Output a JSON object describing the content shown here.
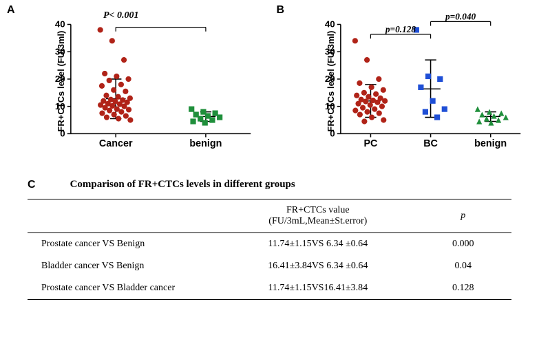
{
  "panelA": {
    "label": "A",
    "y_label": "FR+CTCs level (FU/3ml)",
    "p_text": "P< 0.001",
    "ylim": [
      0,
      40
    ],
    "ytick_step": 10,
    "categories": [
      "Cancer",
      "benign"
    ],
    "series": [
      {
        "name": "Cancer",
        "marker": "circle",
        "color": "#b02318",
        "values": [
          38,
          34,
          27,
          22,
          21,
          20,
          19.5,
          18,
          17.5,
          16,
          15.5,
          14,
          13.5,
          13,
          12.5,
          12.3,
          12,
          11.8,
          11.5,
          11,
          10.8,
          10.5,
          10.2,
          10,
          9.5,
          9,
          8.8,
          8.5,
          8,
          7.5,
          7,
          6.5,
          6,
          5.5,
          5
        ],
        "mean": 12.8,
        "err_top": 20,
        "err_bot": 5.5
      },
      {
        "name": "benign",
        "marker": "square",
        "color": "#1f8f3b",
        "values": [
          9,
          8,
          7.5,
          7,
          6.5,
          6,
          5.5,
          5,
          4.5,
          4
        ],
        "mean": 6.3,
        "err_top": 8,
        "err_bot": 4.5
      }
    ],
    "axis_color": "#000000",
    "marker_size": 6,
    "tick_fontsize": 13,
    "label_fontsize": 14
  },
  "panelB": {
    "label": "B",
    "y_label": "FR+CTCs level (FU/3ml)",
    "p_texts": [
      {
        "text": "p=0.128",
        "between": [
          0,
          1
        ]
      },
      {
        "text": "p=0.040",
        "between": [
          1,
          2
        ]
      }
    ],
    "ylim": [
      0,
      40
    ],
    "ytick_step": 10,
    "categories": [
      "PC",
      "BC",
      "benign"
    ],
    "series": [
      {
        "name": "PC",
        "marker": "circle",
        "color": "#b02318",
        "values": [
          34,
          27,
          20,
          18.5,
          17,
          16,
          15,
          14.5,
          14,
          13.5,
          13,
          12.5,
          12.2,
          12,
          11.8,
          11.5,
          11,
          10.5,
          10,
          9.5,
          9,
          8.5,
          8,
          7.5,
          7,
          6,
          5,
          4.5
        ],
        "mean": 12,
        "err_top": 18,
        "err_bot": 6
      },
      {
        "name": "BC",
        "marker": "square",
        "color": "#1f4fd6",
        "values": [
          38,
          21,
          20,
          17,
          12,
          9,
          8,
          6
        ],
        "mean": 16.4,
        "err_top": 27,
        "err_bot": 6
      },
      {
        "name": "benign",
        "marker": "triangle",
        "color": "#1f8f3b",
        "values": [
          9,
          8,
          7.5,
          7,
          6.5,
          6,
          5.5,
          5,
          4.5,
          4
        ],
        "mean": 6.3,
        "err_top": 8,
        "err_bot": 4.5
      }
    ],
    "axis_color": "#000000",
    "marker_size": 6,
    "tick_fontsize": 13,
    "label_fontsize": 14
  },
  "panelC": {
    "label": "C",
    "title": "Comparison of FR+CTCs levels in different groups",
    "header_col2_line1": "FR+CTCs value",
    "header_col2_line2": "(FU/3mL,Mean±St.error)",
    "header_col3": "p",
    "rows": [
      {
        "comp": "Prostate cancer VS Benign",
        "val": "11.74±1.15VS 6.34 ±0.64",
        "p": "0.000"
      },
      {
        "comp": "Bladder cancer VS Benign",
        "val": "16.41±3.84VS 6.34 ±0.64",
        "p": "0.04"
      },
      {
        "comp": "Prostate cancer VS Bladder cancer",
        "val": "11.74±1.15VS16.41±3.84",
        "p": "0.128"
      }
    ]
  }
}
